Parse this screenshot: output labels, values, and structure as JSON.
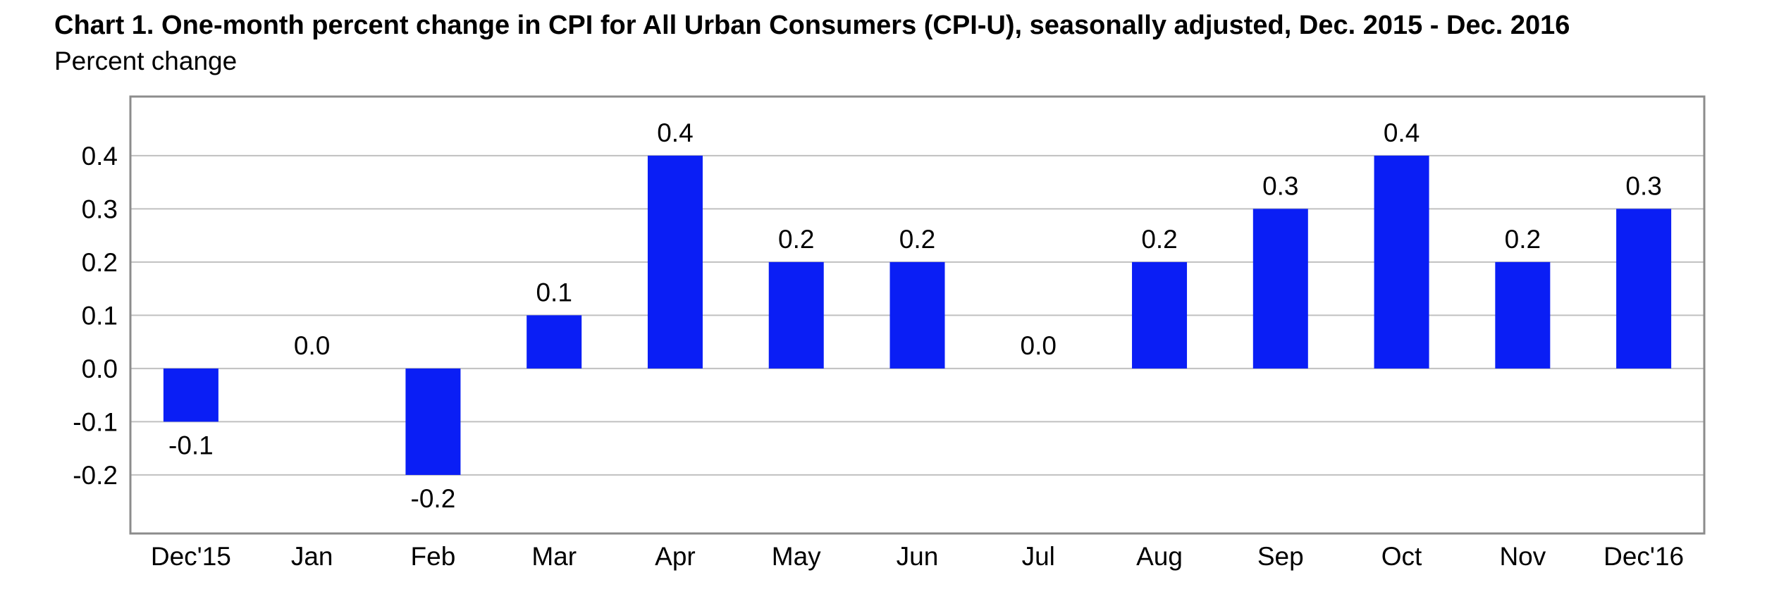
{
  "chart_data": {
    "type": "bar",
    "title": "Chart 1. One-month percent change in CPI for All Urban Consumers (CPI-U), seasonally adjusted, Dec. 2015 - Dec. 2016",
    "ylabel": "Percent change",
    "xlabel": "",
    "categories": [
      "Dec'15",
      "Jan",
      "Feb",
      "Mar",
      "Apr",
      "May",
      "Jun",
      "Jul",
      "Aug",
      "Sep",
      "Oct",
      "Nov",
      "Dec'16"
    ],
    "values": [
      -0.1,
      0.0,
      -0.2,
      0.1,
      0.4,
      0.2,
      0.2,
      0.0,
      0.2,
      0.3,
      0.4,
      0.2,
      0.3
    ],
    "data_labels": [
      "-0.1",
      "0.0",
      "-0.2",
      "0.1",
      "0.4",
      "0.2",
      "0.2",
      "0.0",
      "0.2",
      "0.3",
      "0.4",
      "0.2",
      "0.3"
    ],
    "y_ticks": [
      0.4,
      0.3,
      0.2,
      0.1,
      0.0,
      -0.1,
      -0.2
    ],
    "y_tick_labels": [
      "0.4",
      "0.3",
      "0.2",
      "0.1",
      "0.0",
      "-0.1",
      "-0.2"
    ],
    "ylim": [
      -0.31,
      0.511
    ],
    "grid": true,
    "legend": "none",
    "colors": {
      "bar": "#0a1ef5",
      "grid": "#c0c0c0",
      "frame": "#8c8c8c"
    }
  }
}
